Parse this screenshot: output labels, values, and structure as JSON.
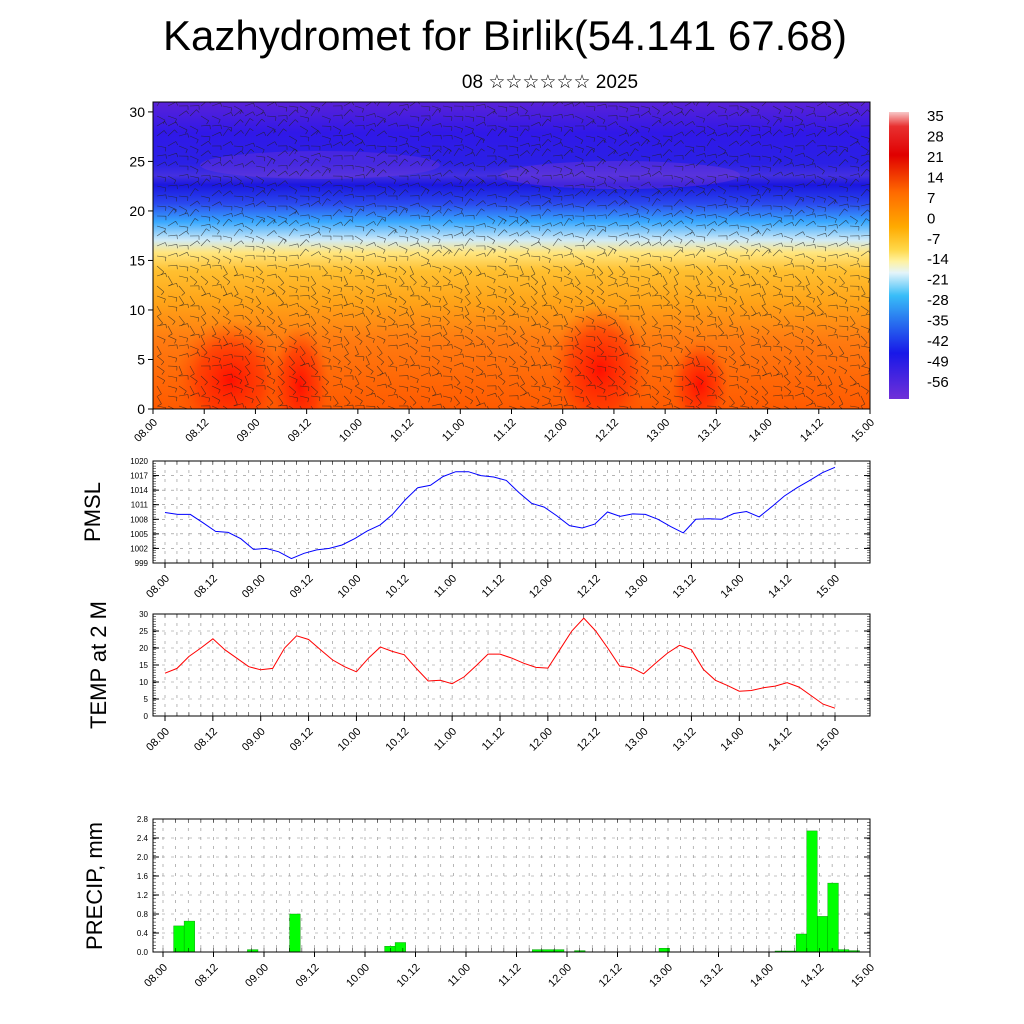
{
  "title": "Kazhydromet for Birlik(54.141 67.68)",
  "subtitle": "08 ☆☆☆☆☆☆ 2025",
  "colors": {
    "pmsl_line": "#0000ff",
    "temp_line": "#ff0000",
    "precip_bar": "#00ff00",
    "precip_bar_edge": "#008800"
  },
  "colorbar": {
    "labels": [
      "35",
      "28",
      "21",
      "14",
      "7",
      "0",
      "-7",
      "-14",
      "-21",
      "-28",
      "-35",
      "-42",
      "-49",
      "-56"
    ]
  },
  "chart_data": [
    {
      "type": "heatmap",
      "description_of_panel": "height–time cross-section with wind barbs",
      "x_tick_labels": [
        "08.00",
        "08.12",
        "09.00",
        "09.12",
        "10.00",
        "10.12",
        "11.00",
        "11.12",
        "12.00",
        "12.12",
        "13.00",
        "13.12",
        "14.00",
        "14.12",
        "15.00"
      ],
      "y_tick_labels": [
        "0",
        "5",
        "10",
        "15",
        "20",
        "25",
        "30"
      ],
      "ylim": [
        0,
        31
      ],
      "colormap_range": [
        -56,
        35
      ]
    },
    {
      "type": "line",
      "ylabel": "PMSL",
      "ylim": [
        999,
        1020
      ],
      "y_tick_labels": [
        "999",
        "1002",
        "1005",
        "1008",
        "1011",
        "1014",
        "1017",
        "1020"
      ],
      "x_tick_labels": [
        "08.00",
        "08.12",
        "09.00",
        "09.12",
        "10.00",
        "10.12",
        "11.00",
        "11.12",
        "12.00",
        "12.12",
        "13.00",
        "13.12",
        "14.00",
        "14.12",
        "15.00"
      ],
      "series": [
        {
          "values": [
            1009.4,
            1009.0,
            1009.0,
            1007.3,
            1005.5,
            1005.3,
            1004.0,
            1001.8,
            1002.0,
            1001.3,
            999.9,
            1001.0,
            1001.7,
            1002.0,
            1002.7,
            1004.0,
            1005.6,
            1006.8,
            1009.0,
            1012.0,
            1014.5,
            1015.0,
            1016.8,
            1017.8,
            1017.8,
            1017.0,
            1016.7,
            1016.0,
            1013.5,
            1011.3,
            1010.5,
            1008.7,
            1006.7,
            1006.2,
            1007.0,
            1009.5,
            1008.6,
            1009.1,
            1009.0,
            1008.0,
            1006.5,
            1005.2,
            1008.0,
            1008.1,
            1008.0,
            1009.2,
            1009.6,
            1008.5,
            1010.6,
            1012.8,
            1014.5,
            1016.0,
            1017.6,
            1018.7
          ]
        }
      ]
    },
    {
      "type": "line",
      "ylabel": "TEMP at 2 M",
      "ylim": [
        0,
        30
      ],
      "y_tick_labels": [
        "0",
        "5",
        "10",
        "15",
        "20",
        "25",
        "30"
      ],
      "x_tick_labels": [
        "08.00",
        "08.12",
        "09.00",
        "09.12",
        "10.00",
        "10.12",
        "11.00",
        "11.12",
        "12.00",
        "12.12",
        "13.00",
        "13.12",
        "14.00",
        "14.12",
        "15.00"
      ],
      "series": [
        {
          "values": [
            12.6,
            14.0,
            17.5,
            20.0,
            22.7,
            19.5,
            17.0,
            14.5,
            13.6,
            14.0,
            20.0,
            23.6,
            22.5,
            19.5,
            16.5,
            14.5,
            13.0,
            17.0,
            20.3,
            19.0,
            18.0,
            14.0,
            10.3,
            10.5,
            9.5,
            11.5,
            14.8,
            18.2,
            18.2,
            17.0,
            15.5,
            14.3,
            14.1,
            19.5,
            25.0,
            28.8,
            25.0,
            20.0,
            14.7,
            14.2,
            12.4,
            15.5,
            18.5,
            20.8,
            19.5,
            13.7,
            10.5,
            9.0,
            7.3,
            7.5,
            8.3,
            8.8,
            9.8,
            8.5,
            6.0,
            3.5,
            2.3
          ]
        }
      ]
    },
    {
      "type": "bar",
      "ylabel": "PRECIP, mm",
      "ylim": [
        0,
        2.8
      ],
      "y_tick_labels": [
        "0.0",
        "0.4",
        "0.8",
        "1.2",
        "1.6",
        "2.0",
        "2.4",
        "2.8"
      ],
      "x_tick_labels": [
        "08.00",
        "08.12",
        "09.00",
        "09.12",
        "10.00",
        "10.12",
        "11.00",
        "11.12",
        "12.00",
        "12.12",
        "13.00",
        "13.12",
        "14.00",
        "14.12",
        "15.00"
      ],
      "values": [
        0,
        0.55,
        0.65,
        0,
        0,
        0,
        0,
        0,
        0.05,
        0,
        0,
        0,
        0.8,
        0,
        0,
        0,
        0,
        0,
        0,
        0,
        0,
        0.12,
        0.2,
        0,
        0,
        0,
        0,
        0,
        0,
        0,
        0,
        0,
        0,
        0,
        0,
        0.05,
        0.05,
        0.05,
        0,
        0.03,
        0,
        0,
        0,
        0,
        0,
        0,
        0,
        0.08,
        0,
        0,
        0,
        0,
        0,
        0,
        0,
        0,
        0,
        0,
        0.02,
        0.02,
        0.38,
        2.55,
        0.75,
        1.45,
        0.05,
        0.03,
        0
      ]
    }
  ]
}
